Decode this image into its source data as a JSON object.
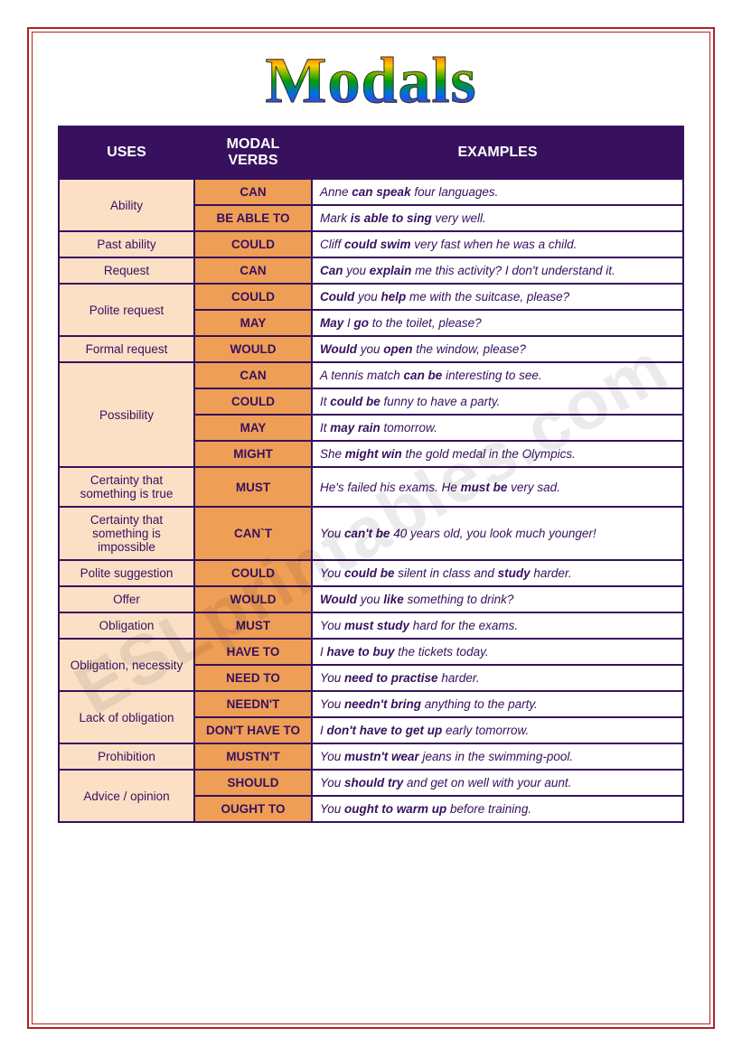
{
  "title": "Modals",
  "watermark": "ESLprintables.com",
  "headers": {
    "uses": "USES",
    "verbs": "MODAL VERBS",
    "examples": "EXAMPLES"
  },
  "colors": {
    "header_bg": "#37115e",
    "header_text": "#ffffff",
    "use_bg": "#fbe0c6",
    "verb_bg": "#ef9e55",
    "border": "#37115e",
    "frame": "#b22222"
  },
  "rows": [
    {
      "use": "Ability",
      "rowspan": 2,
      "verb": "CAN",
      "ex": "Anne <b>can speak</b> four languages."
    },
    {
      "verb": "BE ABLE TO",
      "ex": "Mark <b>is able to sing</b> very well."
    },
    {
      "use": "Past ability",
      "rowspan": 1,
      "verb": "COULD",
      "ex": "Cliff <b>could swim</b> very fast when he was a child."
    },
    {
      "use": "Request",
      "rowspan": 1,
      "verb": "CAN",
      "ex": "<b>Can</b> you <b>explain</b> me this activity?  I don't understand it."
    },
    {
      "use": "Polite request",
      "rowspan": 2,
      "verb": "COULD",
      "ex": "<b>Could</b> you <b>help</b> me with the suitcase, please?"
    },
    {
      "verb": "MAY",
      "ex": "<b>May</b> I <b>go</b> to the toilet, please?"
    },
    {
      "use": "Formal request",
      "rowspan": 1,
      "verb": "WOULD",
      "ex": "<b>Would</b> you <b>open</b> the window, please?"
    },
    {
      "use": "Possibility",
      "rowspan": 4,
      "verb": "CAN",
      "ex": "A tennis match <b>can be</b> interesting to see."
    },
    {
      "verb": "COULD",
      "ex": "It <b>could be</b> funny to have a party."
    },
    {
      "verb": "MAY",
      "ex": "It <b>may rain</b> tomorrow."
    },
    {
      "verb": "MIGHT",
      "ex": "She <b>might win</b> the gold medal in the Olympics."
    },
    {
      "use": "Certainty that something is true",
      "rowspan": 1,
      "verb": "MUST",
      "ex": "He's failed his exams.  He <b>must be</b> very sad."
    },
    {
      "use": "Certainty that something is impossible",
      "rowspan": 1,
      "verb": "CAN`T",
      "ex": "You <b>can't be</b> 40 years old, you look much younger!"
    },
    {
      "use": "Polite suggestion",
      "rowspan": 1,
      "verb": "COULD",
      "ex": "You <b>could be</b> silent in class and <b>study</b> harder."
    },
    {
      "use": "Offer",
      "rowspan": 1,
      "verb": "WOULD",
      "ex": "<b>Would</b> you <b>like</b> something to drink?"
    },
    {
      "use": "Obligation",
      "rowspan": 1,
      "verb": "MUST",
      "ex": "You <b>must study</b> hard for the exams."
    },
    {
      "use": "Obligation, necessity",
      "rowspan": 2,
      "verb": "HAVE TO",
      "ex": "I <b>have to buy</b> the tickets today."
    },
    {
      "verb": "NEED TO",
      "ex": "You <b>need to practise</b> harder."
    },
    {
      "use": "Lack of obligation",
      "rowspan": 2,
      "verb": "NEEDN'T",
      "ex": "You <b>needn't bring</b> anything to the party."
    },
    {
      "verb": "DON'T HAVE TO",
      "ex": "I <b>don't have to get up</b> early tomorrow."
    },
    {
      "use": "Prohibition",
      "rowspan": 1,
      "verb": "MUSTN'T",
      "ex": "You <b>mustn't wear</b> jeans in the swimming-pool."
    },
    {
      "use": "Advice / opinion",
      "rowspan": 2,
      "verb": "SHOULD",
      "ex": "You <b>should try</b> and get on well with your aunt."
    },
    {
      "verb": "OUGHT TO",
      "ex": "You <b>ought to warm up</b> before training."
    }
  ]
}
